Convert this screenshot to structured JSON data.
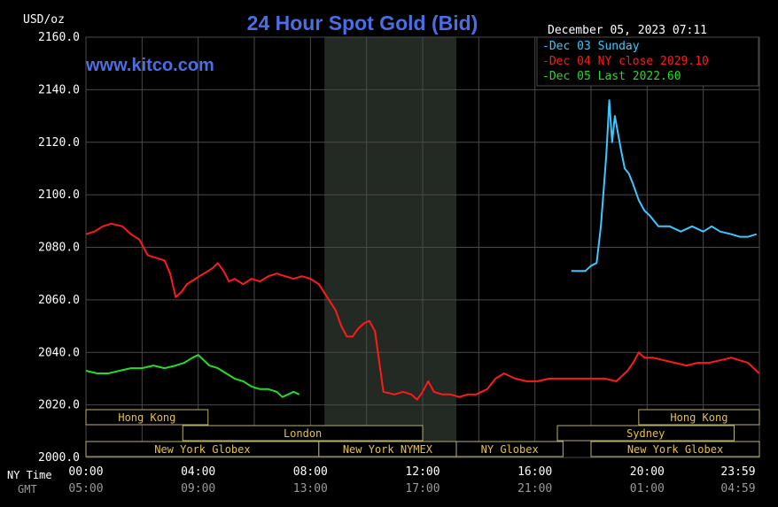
{
  "header": {
    "unit_label": "USD/oz",
    "title": "24 Hour Spot Gold (Bid)",
    "timestamp": "December 05, 2023 07:11",
    "website": "www.kitco.com"
  },
  "colors": {
    "background": "#000000",
    "grid": "#4a4a4a",
    "title": "#4a6ee6",
    "site": "#4a6ee6",
    "axis_text": "#ffffff",
    "gmt_text": "#9a9a9a",
    "shade": "#232a23",
    "session_text": "#e8c040",
    "session_border": "#b9b070"
  },
  "chart_data": {
    "type": "line",
    "title": "24 Hour Spot Gold (Bid)",
    "ylabel": "USD/oz",
    "xlabel": "",
    "ylim": [
      2000,
      2160
    ],
    "xlim": [
      0,
      24
    ],
    "grid": true,
    "legend_position": "top-right",
    "y_ticks": [
      "2000.0",
      "2020.0",
      "2040.0",
      "2060.0",
      "2080.0",
      "2100.0",
      "2120.0",
      "2140.0",
      "2160.0"
    ],
    "y_tick_values": [
      2000,
      2020,
      2040,
      2060,
      2080,
      2100,
      2120,
      2140,
      2160
    ],
    "x_ticks_ny": [
      "00:00",
      "04:00",
      "08:00",
      "12:00",
      "16:00",
      "20:00",
      "23:59"
    ],
    "x_ticks_gmt": [
      "05:00",
      "09:00",
      "13:00",
      "17:00",
      "21:00",
      "01:00",
      "04:59"
    ],
    "x_tick_hours": [
      0,
      4,
      8,
      12,
      16,
      20,
      24
    ],
    "x_row_labels": {
      "ny": "NY Time",
      "gmt": "GMT"
    },
    "shaded_hours": [
      8.5,
      13.2
    ],
    "series": [
      {
        "name": "Dec 03 Sunday",
        "color": "#3cc8ff",
        "x": [
          17.3,
          17.8,
          18.0,
          18.2,
          18.35,
          18.45,
          18.55,
          18.65,
          18.75,
          18.85,
          18.95,
          19.05,
          19.2,
          19.35,
          19.5,
          19.7,
          19.9,
          20.1,
          20.4,
          20.8,
          21.2,
          21.6,
          22.0,
          22.3,
          22.6,
          23.0,
          23.3,
          23.6,
          23.9
        ],
        "y": [
          2071,
          2071,
          2073,
          2074,
          2088,
          2102,
          2116,
          2136,
          2120,
          2130,
          2124,
          2118,
          2110,
          2108,
          2104,
          2098,
          2094,
          2092,
          2088,
          2088,
          2086,
          2088,
          2086,
          2088,
          2086,
          2085,
          2084,
          2084,
          2085
        ]
      },
      {
        "name": "Dec 04 NY close 2029.10",
        "color": "#ff1a1a",
        "x": [
          0.0,
          0.3,
          0.6,
          0.9,
          1.3,
          1.6,
          1.9,
          2.2,
          2.5,
          2.8,
          3.0,
          3.2,
          3.4,
          3.6,
          3.9,
          4.2,
          4.5,
          4.7,
          4.9,
          5.1,
          5.3,
          5.6,
          5.9,
          6.2,
          6.5,
          6.8,
          7.1,
          7.4,
          7.7,
          8.0,
          8.3,
          8.6,
          8.9,
          9.1,
          9.3,
          9.5,
          9.7,
          9.9,
          10.1,
          10.3,
          10.6,
          11.0,
          11.3,
          11.6,
          11.8,
          12.0,
          12.2,
          12.4,
          12.7,
          13.0,
          13.3,
          13.6,
          13.9,
          14.1,
          14.3,
          14.6,
          14.9,
          15.3,
          15.7,
          16.1,
          16.5,
          16.9,
          17.3,
          17.7,
          18.1,
          18.5,
          18.9,
          19.1,
          19.3,
          19.5,
          19.7,
          19.9,
          20.2,
          20.6,
          21.0,
          21.4,
          21.8,
          22.2,
          22.6,
          23.0,
          23.3,
          23.6,
          23.99
        ],
        "y": [
          2085,
          2086,
          2088,
          2089,
          2088,
          2085,
          2083,
          2077,
          2076,
          2075,
          2070,
          2061,
          2063,
          2066,
          2068,
          2070,
          2072,
          2074,
          2071,
          2067,
          2068,
          2066,
          2068,
          2067,
          2069,
          2070,
          2069,
          2068,
          2069,
          2068,
          2066,
          2061,
          2056,
          2050,
          2046,
          2046,
          2049,
          2051,
          2052,
          2048,
          2025,
          2024,
          2025,
          2024,
          2022,
          2025,
          2029,
          2025,
          2024,
          2024,
          2023,
          2024,
          2024,
          2025,
          2026,
          2030,
          2032,
          2030,
          2029,
          2029,
          2030,
          2030,
          2030,
          2030,
          2030,
          2030,
          2029,
          2031,
          2033,
          2036,
          2040,
          2038,
          2038,
          2037,
          2036,
          2035,
          2036,
          2036,
          2037,
          2038,
          2037,
          2036,
          2032
        ]
      },
      {
        "name": "Dec 05 Last 2022.60",
        "color": "#22dd22",
        "x": [
          0.0,
          0.4,
          0.8,
          1.2,
          1.6,
          2.0,
          2.4,
          2.8,
          3.2,
          3.5,
          3.8,
          4.0,
          4.2,
          4.4,
          4.7,
          5.0,
          5.3,
          5.6,
          5.9,
          6.2,
          6.5,
          6.8,
          7.0,
          7.2,
          7.4,
          7.6
        ],
        "y": [
          2033,
          2032,
          2032,
          2033,
          2034,
          2034,
          2035,
          2034,
          2035,
          2036,
          2038,
          2039,
          2037,
          2035,
          2034,
          2032,
          2030,
          2029,
          2027,
          2026,
          2026,
          2025,
          2023,
          2024,
          2025,
          2024
        ]
      }
    ],
    "sessions": [
      {
        "label": "Hong Kong",
        "start": 0.0,
        "end": 4.35,
        "row": 0
      },
      {
        "label": "London",
        "start": 3.45,
        "end": 12.0,
        "row": 1
      },
      {
        "label": "New York Globex",
        "start": 0.0,
        "end": 8.3,
        "row": 2
      },
      {
        "label": "New York NYMEX",
        "start": 8.3,
        "end": 13.2,
        "row": 2
      },
      {
        "label": "NY Globex",
        "start": 13.2,
        "end": 17.0,
        "row": 2
      },
      {
        "label": "Hong Kong",
        "start": 19.7,
        "end": 24.0,
        "row": 0
      },
      {
        "label": "Sydney",
        "start": 16.8,
        "end": 23.1,
        "row": 1
      },
      {
        "label": "New York Globex",
        "start": 18.0,
        "end": 24.0,
        "row": 2
      }
    ]
  }
}
